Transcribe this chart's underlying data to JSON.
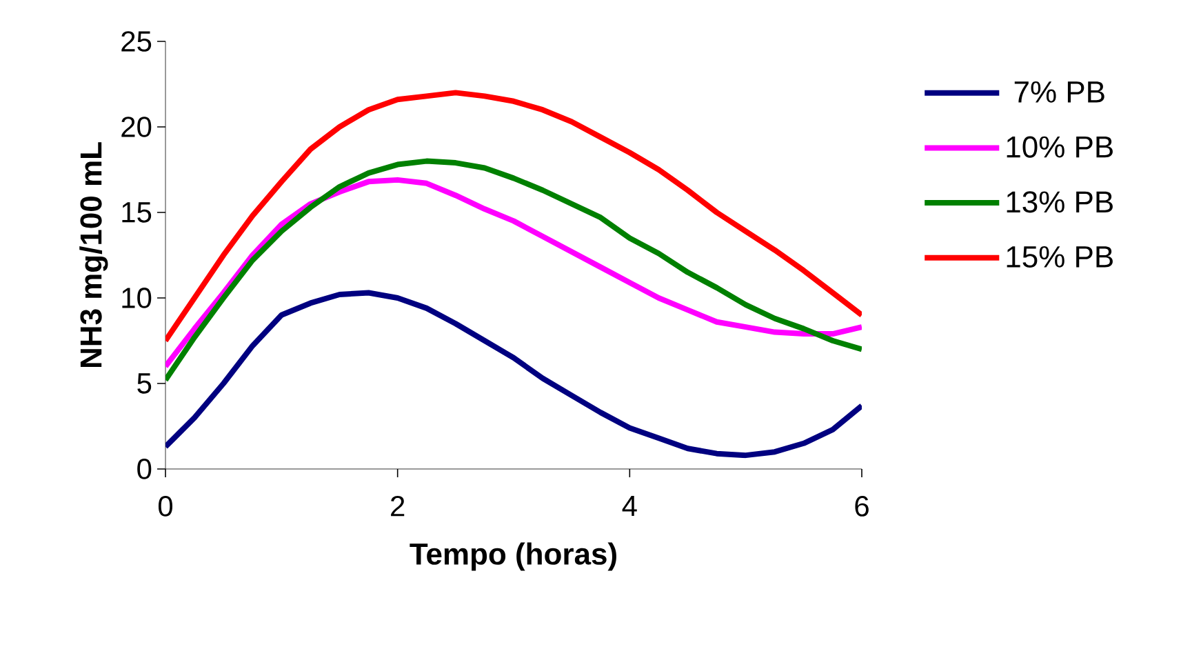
{
  "chart_data": {
    "type": "line",
    "xlabel": "Tempo (horas)",
    "ylabel": "NH3 mg/100 mL",
    "x": [
      0,
      0.25,
      0.5,
      0.75,
      1,
      1.25,
      1.5,
      1.75,
      2,
      2.25,
      2.5,
      2.75,
      3,
      3.25,
      3.5,
      3.75,
      4,
      4.25,
      4.5,
      4.75,
      5,
      5.25,
      5.5,
      5.75,
      6
    ],
    "xlim": [
      0,
      6
    ],
    "xticks": [
      0,
      2,
      4,
      6
    ],
    "ylim": [
      0,
      25
    ],
    "yticks": [
      0,
      5,
      10,
      15,
      20,
      25
    ],
    "legend": "right",
    "grid": false,
    "marker": "none",
    "line_style": "solid",
    "series": [
      {
        "name": "7% PB",
        "color": "#000080",
        "values": [
          1.3,
          3.0,
          5.0,
          7.2,
          9.0,
          9.7,
          10.2,
          10.3,
          10.0,
          9.4,
          8.5,
          7.5,
          6.5,
          5.3,
          4.3,
          3.3,
          2.4,
          1.8,
          1.2,
          0.9,
          0.8,
          1.0,
          1.5,
          2.3,
          3.7
        ]
      },
      {
        "name": "10% PB",
        "color": "#ff00ff",
        "values": [
          6.0,
          8.2,
          10.3,
          12.5,
          14.3,
          15.5,
          16.2,
          16.8,
          16.9,
          16.7,
          16.0,
          15.2,
          14.5,
          13.6,
          12.7,
          11.8,
          10.9,
          10.0,
          9.3,
          8.6,
          8.3,
          8.0,
          7.9,
          7.9,
          8.3
        ]
      },
      {
        "name": "13% PB",
        "color": "#008000",
        "values": [
          5.2,
          7.7,
          10.0,
          12.2,
          13.9,
          15.3,
          16.5,
          17.3,
          17.8,
          18.0,
          17.9,
          17.6,
          17.0,
          16.3,
          15.5,
          14.7,
          13.5,
          12.6,
          11.5,
          10.6,
          9.6,
          8.8,
          8.2,
          7.5,
          7.0
        ]
      },
      {
        "name": "15% PB",
        "color": "#ff0000",
        "values": [
          7.5,
          10.0,
          12.5,
          14.8,
          16.8,
          18.7,
          20.0,
          21.0,
          21.6,
          21.8,
          22.0,
          21.8,
          21.5,
          21.0,
          20.3,
          19.4,
          18.5,
          17.5,
          16.3,
          15.0,
          13.9,
          12.8,
          11.6,
          10.3,
          9.0
        ]
      }
    ]
  }
}
